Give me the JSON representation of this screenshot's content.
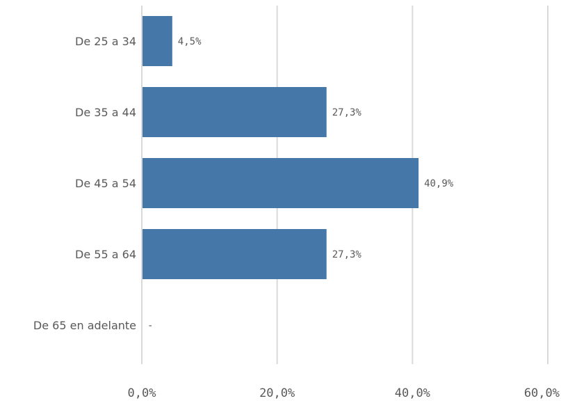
{
  "chart_data": {
    "type": "bar",
    "orientation": "horizontal",
    "categories": [
      "De 25 a 34",
      "De 35 a 44",
      "De 45 a 54",
      "De 55 a 64",
      "De 65 en adelante"
    ],
    "values": [
      4.5,
      27.3,
      40.9,
      27.3,
      null
    ],
    "data_labels": [
      "4,5%",
      "27,3%",
      "40,9%",
      "27,3%",
      "-"
    ],
    "xlim": [
      0,
      60
    ],
    "x_ticks": [
      0,
      20,
      40,
      60
    ],
    "x_tick_labels": [
      "0,0%",
      "20,0%",
      "40,0%",
      "60,0%"
    ],
    "title": "",
    "xlabel": "",
    "ylabel": "",
    "grid": true,
    "legend": "none",
    "bar_color": "#4577a8"
  }
}
